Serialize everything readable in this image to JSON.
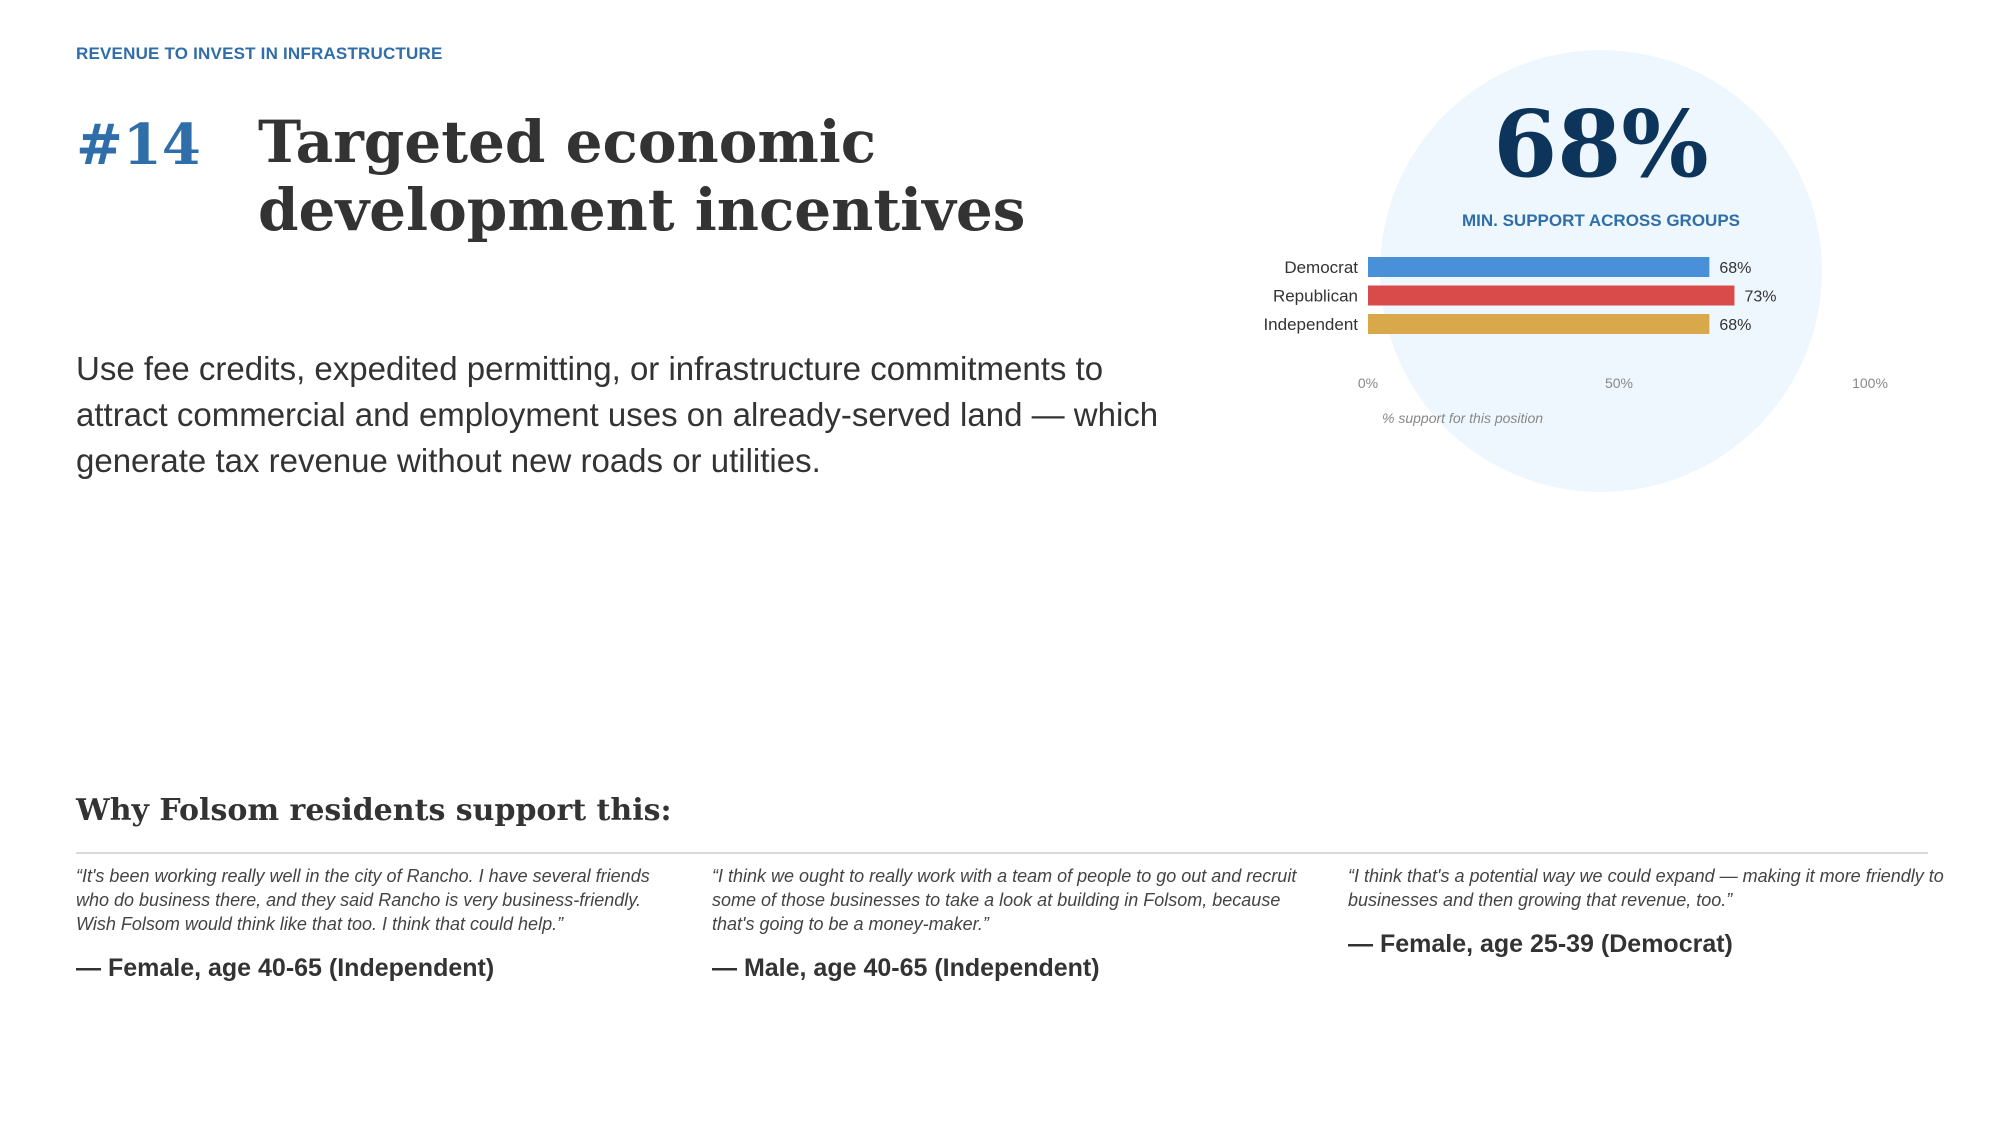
{
  "section_label": "REVENUE TO INVEST IN INFRASTRUCTURE",
  "rank": "#14",
  "title": "Targeted economic development incentives",
  "description": "Use fee credits, expedited permitting, or infrastructure commitments to attract commercial and employment uses on already-served land — which generate tax revenue without new roads or utilities.",
  "support": {
    "big_value": "68%",
    "caption": "MIN. SUPPORT ACROSS GROUPS"
  },
  "chart_data": {
    "type": "bar",
    "orientation": "horizontal",
    "categories": [
      "Democrat",
      "Republican",
      "Independent"
    ],
    "values": [
      68,
      73,
      68
    ],
    "data_labels": [
      "68%",
      "73%",
      "68%"
    ],
    "colors": [
      "#4a90d9",
      "#d94b4b",
      "#d9a84a"
    ],
    "x_ticks": [
      "0%",
      "50%",
      "100%"
    ],
    "xlim": [
      0,
      100
    ],
    "xlabel": "% support for this position",
    "grid": false
  },
  "why_heading": "Why Folsom residents support this:",
  "quotes": [
    {
      "text": "“It's been working really well in the city of Rancho. I have several friends who do business there, and they said Rancho is very business-friendly. Wish Folsom would think like that too. I think that could help.”",
      "attribution": "— Female, age 40-65 (Independent)"
    },
    {
      "text": "“I think we ought to really work with a team of people to go out and recruit some of those businesses to take a look at building in Folsom, because that's going to be a money-maker.”",
      "attribution": "— Male, age 40-65 (Independent)"
    },
    {
      "text": "“I think that's a potential way we could expand — making it more friendly to businesses and then growing that revenue, too.”",
      "attribution": "— Female, age 25-39 (Democrat)"
    }
  ]
}
